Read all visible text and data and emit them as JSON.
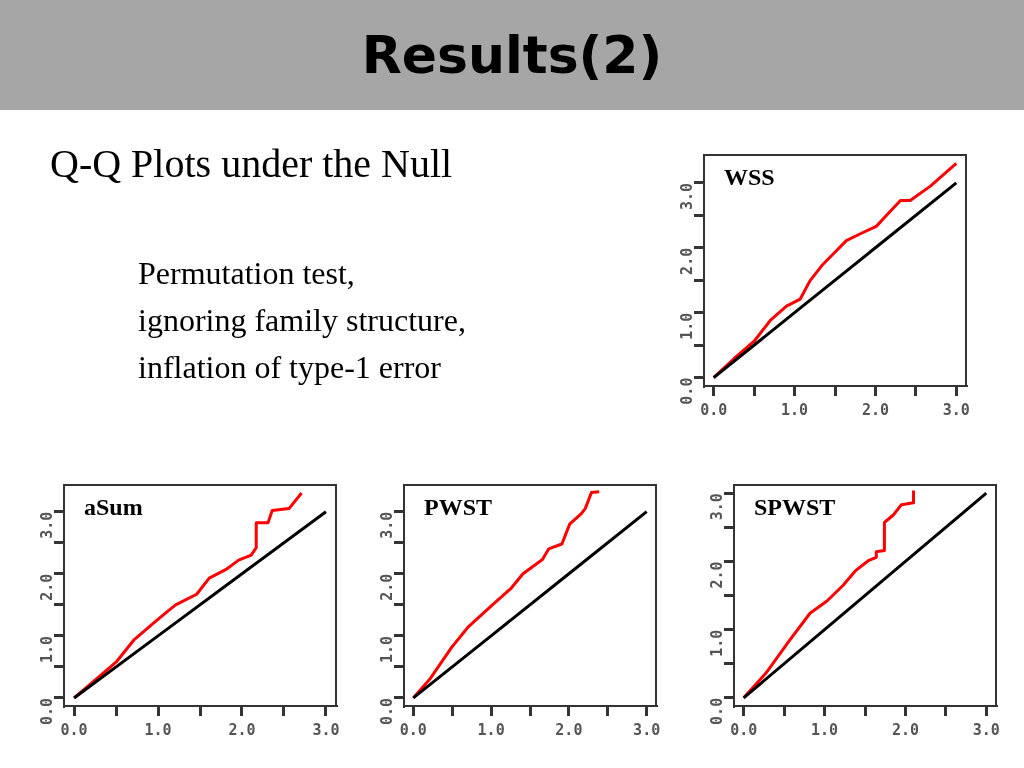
{
  "chart_data": [
    {
      "type": "other",
      "title": "Results(2)",
      "subtitle": "Q-Q Plots under the Null",
      "annotations": [
        "Permutation test,",
        "ignoring family structure,",
        "inflation of type-1 error"
      ]
    },
    {
      "type": "line",
      "title": "WSS",
      "xlim": [
        -0.12,
        3.12
      ],
      "ylim": [
        -0.13,
        3.43
      ],
      "xticks": [
        {
          "value": 0,
          "label": "0.0"
        },
        {
          "value": 0.5,
          "label": null
        },
        {
          "value": 1,
          "label": "1.0"
        },
        {
          "value": 1.5,
          "label": null
        },
        {
          "value": 2,
          "label": "2.0"
        },
        {
          "value": 2.5,
          "label": null
        },
        {
          "value": 3,
          "label": "3.0"
        }
      ],
      "yticks": [
        {
          "value": 0,
          "label": "0.0"
        },
        {
          "value": 0.5,
          "label": null
        },
        {
          "value": 1,
          "label": "1.0"
        },
        {
          "value": 1.5,
          "label": null
        },
        {
          "value": 2,
          "label": "2.0"
        },
        {
          "value": 2.5,
          "label": null
        },
        {
          "value": 3,
          "label": "3.0"
        }
      ],
      "grid": false,
      "legend": false,
      "marker": "none",
      "series": [
        {
          "color": "#000000",
          "x": [
            0,
            1,
            2,
            3
          ],
          "values": [
            0,
            1,
            2,
            3
          ]
        },
        {
          "color": "#ff0000",
          "x": [
            0,
            0.25,
            0.5,
            0.7,
            0.9,
            1.07,
            1.19,
            1.34,
            1.49,
            1.64,
            1.82,
            2.01,
            2.19,
            2.31,
            2.43,
            2.68,
            3.0
          ],
          "values": [
            0,
            0.29,
            0.56,
            0.88,
            1.1,
            1.21,
            1.49,
            1.73,
            1.92,
            2.11,
            2.22,
            2.33,
            2.57,
            2.73,
            2.73,
            2.95,
            3.3
          ]
        }
      ]
    },
    {
      "type": "line",
      "title": "aSum",
      "xlim": [
        -0.12,
        3.12
      ],
      "ylim": [
        -0.13,
        3.43
      ],
      "xticks": [
        {
          "value": 0,
          "label": "0.0"
        },
        {
          "value": 0.5,
          "label": null
        },
        {
          "value": 1,
          "label": "1.0"
        },
        {
          "value": 1.5,
          "label": null
        },
        {
          "value": 2,
          "label": "2.0"
        },
        {
          "value": 2.5,
          "label": null
        },
        {
          "value": 3,
          "label": "3.0"
        }
      ],
      "yticks": [
        {
          "value": 0,
          "label": "0.0"
        },
        {
          "value": 0.5,
          "label": null
        },
        {
          "value": 1,
          "label": "1.0"
        },
        {
          "value": 1.5,
          "label": null
        },
        {
          "value": 2,
          "label": "2.0"
        },
        {
          "value": 2.5,
          "label": null
        },
        {
          "value": 3,
          "label": "3.0"
        }
      ],
      "grid": false,
      "legend": false,
      "marker": "none",
      "series": [
        {
          "color": "#000000",
          "x": [
            0,
            1,
            2,
            3
          ],
          "values": [
            0,
            1,
            2,
            3
          ]
        },
        {
          "color": "#ff0000",
          "x": [
            0,
            0.26,
            0.51,
            0.71,
            0.96,
            1.11,
            1.21,
            1.46,
            1.61,
            1.81,
            1.96,
            2.11,
            2.17,
            2.17,
            2.31,
            2.36,
            2.56,
            2.71
          ],
          "values": [
            0,
            0.3,
            0.59,
            0.93,
            1.22,
            1.39,
            1.5,
            1.67,
            1.93,
            2.07,
            2.22,
            2.3,
            2.42,
            2.82,
            2.82,
            3.02,
            3.05,
            3.3
          ]
        }
      ]
    },
    {
      "type": "line",
      "title": "PWST",
      "xlim": [
        -0.12,
        3.12
      ],
      "ylim": [
        -0.13,
        3.43
      ],
      "xticks": [
        {
          "value": 0,
          "label": "0.0"
        },
        {
          "value": 0.5,
          "label": null
        },
        {
          "value": 1,
          "label": "1.0"
        },
        {
          "value": 1.5,
          "label": null
        },
        {
          "value": 2,
          "label": "2.0"
        },
        {
          "value": 2.5,
          "label": null
        },
        {
          "value": 3,
          "label": "3.0"
        }
      ],
      "yticks": [
        {
          "value": 0,
          "label": "0.0"
        },
        {
          "value": 0.5,
          "label": null
        },
        {
          "value": 1,
          "label": "1.0"
        },
        {
          "value": 1.5,
          "label": null
        },
        {
          "value": 2,
          "label": "2.0"
        },
        {
          "value": 2.5,
          "label": null
        },
        {
          "value": 3,
          "label": "3.0"
        }
      ],
      "grid": false,
      "legend": false,
      "marker": "none",
      "series": [
        {
          "color": "#000000",
          "x": [
            0,
            1,
            2,
            3
          ],
          "values": [
            0,
            1,
            2,
            3
          ]
        },
        {
          "color": "#ff0000",
          "x": [
            0,
            0.21,
            0.49,
            0.71,
            1.01,
            1.26,
            1.41,
            1.66,
            1.74,
            1.91,
            2.01,
            2.16,
            2.21,
            2.29,
            2.39
          ],
          "values": [
            0,
            0.3,
            0.81,
            1.15,
            1.49,
            1.77,
            2.0,
            2.23,
            2.4,
            2.48,
            2.8,
            2.97,
            3.05,
            3.31,
            3.32
          ]
        }
      ]
    },
    {
      "type": "line",
      "title": "SPWST",
      "xlim": [
        -0.12,
        3.12
      ],
      "ylim": [
        -0.12,
        3.12
      ],
      "xticks": [
        {
          "value": 0,
          "label": "0.0"
        },
        {
          "value": 0.5,
          "label": null
        },
        {
          "value": 1,
          "label": "1.0"
        },
        {
          "value": 1.5,
          "label": null
        },
        {
          "value": 2,
          "label": "2.0"
        },
        {
          "value": 2.5,
          "label": null
        },
        {
          "value": 3,
          "label": "3.0"
        }
      ],
      "yticks": [
        {
          "value": 0,
          "label": "0.0"
        },
        {
          "value": 0.5,
          "label": null
        },
        {
          "value": 1,
          "label": "1.0"
        },
        {
          "value": 1.5,
          "label": null
        },
        {
          "value": 2,
          "label": "2.0"
        },
        {
          "value": 2.5,
          "label": null
        },
        {
          "value": 3,
          "label": "3.0"
        }
      ],
      "grid": false,
      "legend": false,
      "marker": "none",
      "series": [
        {
          "color": "#000000",
          "x": [
            0,
            1,
            2,
            3
          ],
          "values": [
            0,
            1,
            2,
            3
          ]
        },
        {
          "color": "#ff0000",
          "x": [
            0,
            0.28,
            0.56,
            0.82,
            1.03,
            1.23,
            1.38,
            1.54,
            1.64,
            1.64,
            1.74,
            1.74,
            1.85,
            1.95,
            2.1,
            2.1
          ],
          "values": [
            0,
            0.37,
            0.83,
            1.24,
            1.42,
            1.65,
            1.86,
            2.01,
            2.06,
            2.14,
            2.16,
            2.57,
            2.68,
            2.83,
            2.86,
            3.04
          ]
        }
      ]
    }
  ]
}
